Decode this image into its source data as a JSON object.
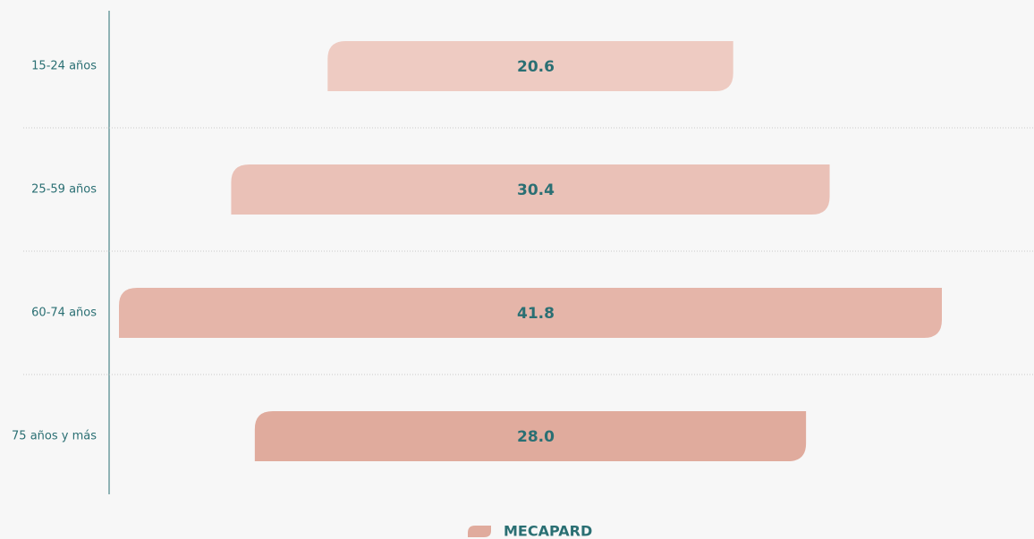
{
  "chart_data": {
    "type": "funnel",
    "categories": [
      "15-24 años",
      "25-59 años",
      "60-74 años",
      "75 años y más"
    ],
    "series": [
      {
        "name": "MECAPARD",
        "color": "#e0ab9d",
        "colors": [
          "#eecbc2",
          "#eac1b7",
          "#e5b5a9",
          "#e0ab9d"
        ],
        "values": [
          20.6,
          30.4,
          41.8,
          28.0
        ],
        "value_labels": [
          "20.6",
          "30.4",
          "41.8",
          "28.0"
        ]
      }
    ],
    "legend": "bottom"
  }
}
